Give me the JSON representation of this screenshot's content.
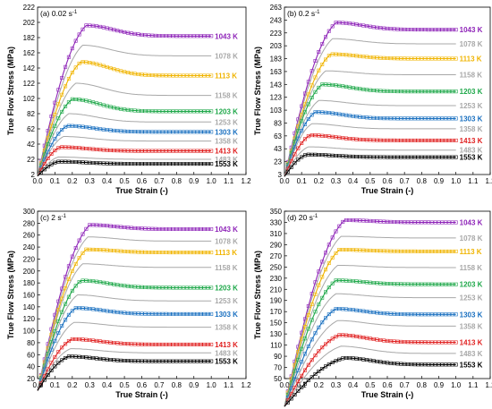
{
  "colors": {
    "1043 K": "#8e24b8",
    "1078 K": "#a8a8a8",
    "1113 K": "#f0b400",
    "1158 K": "#a8a8a8",
    "1203 K": "#1fa84a",
    "1253 K": "#a8a8a8",
    "1303 K": "#1a70c0",
    "1358 K": "#a8a8a8",
    "1413 K": "#e02020",
    "1483 K": "#a8a8a8",
    "1553 K": "#000000"
  },
  "chart_data": [
    {
      "type": "line",
      "panel_label": "(a) 0.02 s",
      "rate_exponent": "-1",
      "xlabel": "True Strain (-)",
      "ylabel": "True Flow Stress (MPa)",
      "xlim": [
        0.0,
        1.2
      ],
      "ylim": [
        2,
        222
      ],
      "xticks": [
        "0.0",
        "0.1",
        "0.2",
        "0.3",
        "0.4",
        "0.5",
        "0.6",
        "0.7",
        "0.8",
        "0.9",
        "1.0",
        "1.1",
        "1.2"
      ],
      "yticks": [
        "2",
        "22",
        "42",
        "62",
        "82",
        "102",
        "122",
        "142",
        "162",
        "182",
        "202",
        "222"
      ],
      "series": [
        {
          "name": "1043 K",
          "experimental": true,
          "peak": 198,
          "peak_strain": 0.28,
          "steady": 184
        },
        {
          "name": "1078 K",
          "experimental": false,
          "peak": 172,
          "peak_strain": 0.26,
          "steady": 158
        },
        {
          "name": "1113 K",
          "experimental": true,
          "peak": 150,
          "peak_strain": 0.25,
          "steady": 132
        },
        {
          "name": "1158 K",
          "experimental": false,
          "peak": 122,
          "peak_strain": 0.22,
          "steady": 106
        },
        {
          "name": "1203 K",
          "experimental": true,
          "peak": 101,
          "peak_strain": 0.2,
          "steady": 85
        },
        {
          "name": "1253 K",
          "experimental": false,
          "peak": 82,
          "peak_strain": 0.18,
          "steady": 71
        },
        {
          "name": "1303 K",
          "experimental": true,
          "peak": 66,
          "peak_strain": 0.17,
          "steady": 58
        },
        {
          "name": "1358 K",
          "experimental": false,
          "peak": 52,
          "peak_strain": 0.15,
          "steady": 46
        },
        {
          "name": "1413 K",
          "experimental": true,
          "peak": 38,
          "peak_strain": 0.13,
          "steady": 33
        },
        {
          "name": "1483 K",
          "experimental": false,
          "peak": 25,
          "peak_strain": 0.12,
          "steady": 22
        },
        {
          "name": "1553 K",
          "experimental": true,
          "peak": 19,
          "peak_strain": 0.12,
          "steady": 16
        }
      ]
    },
    {
      "type": "line",
      "panel_label": "(b) 0.2 s",
      "rate_exponent": "-1",
      "xlabel": "True Strain (-)",
      "ylabel": "True Flow Stress (MPa)",
      "xlim": [
        0.0,
        1.2
      ],
      "ylim": [
        3,
        263
      ],
      "xticks": [
        "0.0",
        "0.1",
        "0.2",
        "0.3",
        "0.4",
        "0.5",
        "0.6",
        "0.7",
        "0.8",
        "0.9",
        "1.0",
        "1.1",
        "1.2"
      ],
      "yticks": [
        "3",
        "23",
        "43",
        "63",
        "83",
        "103",
        "123",
        "143",
        "163",
        "183",
        "203",
        "223",
        "243",
        "263"
      ],
      "series": [
        {
          "name": "1043 K",
          "experimental": true,
          "peak": 239,
          "peak_strain": 0.3,
          "steady": 228
        },
        {
          "name": "1078 K",
          "experimental": false,
          "peak": 214,
          "peak_strain": 0.28,
          "steady": 206
        },
        {
          "name": "1113 K",
          "experimental": true,
          "peak": 190,
          "peak_strain": 0.27,
          "steady": 183
        },
        {
          "name": "1158 K",
          "experimental": false,
          "peak": 164,
          "peak_strain": 0.24,
          "steady": 158
        },
        {
          "name": "1203 K",
          "experimental": true,
          "peak": 143,
          "peak_strain": 0.22,
          "steady": 132
        },
        {
          "name": "1253 K",
          "experimental": false,
          "peak": 118,
          "peak_strain": 0.2,
          "steady": 110
        },
        {
          "name": "1303 K",
          "experimental": true,
          "peak": 100,
          "peak_strain": 0.18,
          "steady": 90
        },
        {
          "name": "1358 K",
          "experimental": false,
          "peak": 82,
          "peak_strain": 0.16,
          "steady": 74
        },
        {
          "name": "1413 K",
          "experimental": true,
          "peak": 64,
          "peak_strain": 0.15,
          "steady": 56
        },
        {
          "name": "1483 K",
          "experimental": false,
          "peak": 46,
          "peak_strain": 0.14,
          "steady": 41
        },
        {
          "name": "1553 K",
          "experimental": true,
          "peak": 34,
          "peak_strain": 0.13,
          "steady": 30
        }
      ]
    },
    {
      "type": "line",
      "panel_label": "(c) 2 s",
      "rate_exponent": "-1",
      "xlabel": "True Strain (-)",
      "ylabel": "True Flow Stress (MPa)",
      "xlim": [
        0.0,
        1.2
      ],
      "ylim": [
        20,
        300
      ],
      "xticks": [
        "0.0",
        "0.1",
        "0.2",
        "0.3",
        "0.4",
        "0.5",
        "0.6",
        "0.7",
        "0.8",
        "0.9",
        "1.0",
        "1.1",
        "1.2"
      ],
      "yticks": [
        "20",
        "40",
        "60",
        "80",
        "100",
        "120",
        "140",
        "160",
        "180",
        "200",
        "220",
        "240",
        "260",
        "280",
        "300"
      ],
      "series": [
        {
          "name": "1043 K",
          "experimental": true,
          "peak": 277,
          "peak_strain": 0.3,
          "steady": 270
        },
        {
          "name": "1078 K",
          "experimental": false,
          "peak": 257,
          "peak_strain": 0.29,
          "steady": 250
        },
        {
          "name": "1113 K",
          "experimental": true,
          "peak": 236,
          "peak_strain": 0.28,
          "steady": 231
        },
        {
          "name": "1158 K",
          "experimental": false,
          "peak": 212,
          "peak_strain": 0.26,
          "steady": 206
        },
        {
          "name": "1203 K",
          "experimental": true,
          "peak": 184,
          "peak_strain": 0.25,
          "steady": 172
        },
        {
          "name": "1253 K",
          "experimental": false,
          "peak": 160,
          "peak_strain": 0.23,
          "steady": 150
        },
        {
          "name": "1303 K",
          "experimental": true,
          "peak": 138,
          "peak_strain": 0.22,
          "steady": 128
        },
        {
          "name": "1358 K",
          "experimental": false,
          "peak": 114,
          "peak_strain": 0.21,
          "steady": 106
        },
        {
          "name": "1413 K",
          "experimental": true,
          "peak": 86,
          "peak_strain": 0.2,
          "steady": 77
        },
        {
          "name": "1483 K",
          "experimental": false,
          "peak": 70,
          "peak_strain": 0.19,
          "steady": 63
        },
        {
          "name": "1553 K",
          "experimental": true,
          "peak": 57,
          "peak_strain": 0.18,
          "steady": 49
        }
      ]
    },
    {
      "type": "line",
      "panel_label": "(d) 20 s",
      "rate_exponent": "-1",
      "xlabel": "True Strain (-)",
      "ylabel": "True Flow Stress (MPa)",
      "xlim": [
        0.0,
        1.2
      ],
      "ylim": [
        50,
        350
      ],
      "xticks": [
        "0.0",
        "0.1",
        "0.2",
        "0.3",
        "0.4",
        "0.5",
        "0.6",
        "0.7",
        "0.8",
        "0.9",
        "1.0",
        "1.1",
        "1.2"
      ],
      "yticks": [
        "50",
        "70",
        "90",
        "110",
        "130",
        "150",
        "170",
        "190",
        "210",
        "230",
        "250",
        "270",
        "290",
        "310",
        "330",
        "350"
      ],
      "series": [
        {
          "name": "1043 K",
          "experimental": true,
          "peak": 334,
          "peak_strain": 0.35,
          "steady": 330
        },
        {
          "name": "1078 K",
          "experimental": false,
          "peak": 305,
          "peak_strain": 0.33,
          "steady": 302
        },
        {
          "name": "1113 K",
          "experimental": true,
          "peak": 281,
          "peak_strain": 0.32,
          "steady": 278
        },
        {
          "name": "1158 K",
          "experimental": false,
          "peak": 253,
          "peak_strain": 0.31,
          "steady": 249
        },
        {
          "name": "1203 K",
          "experimental": true,
          "peak": 226,
          "peak_strain": 0.3,
          "steady": 219
        },
        {
          "name": "1253 K",
          "experimental": false,
          "peak": 202,
          "peak_strain": 0.3,
          "steady": 195
        },
        {
          "name": "1303 K",
          "experimental": true,
          "peak": 175,
          "peak_strain": 0.3,
          "steady": 165
        },
        {
          "name": "1358 K",
          "experimental": false,
          "peak": 154,
          "peak_strain": 0.31,
          "steady": 144
        },
        {
          "name": "1413 K",
          "experimental": true,
          "peak": 128,
          "peak_strain": 0.32,
          "steady": 115
        },
        {
          "name": "1483 K",
          "experimental": false,
          "peak": 108,
          "peak_strain": 0.33,
          "steady": 95
        },
        {
          "name": "1553 K",
          "experimental": true,
          "peak": 87,
          "peak_strain": 0.35,
          "steady": 75
        }
      ]
    }
  ]
}
